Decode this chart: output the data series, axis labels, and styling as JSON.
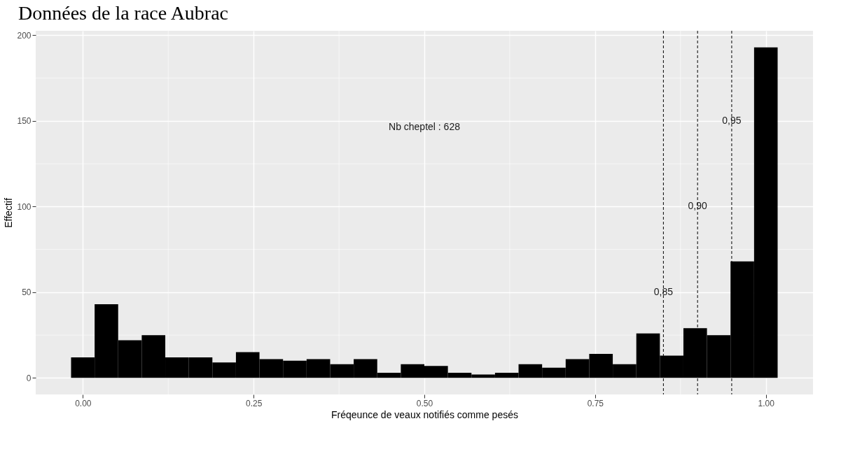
{
  "chart_data": {
    "type": "histogram",
    "title": "Données de la race Aubrac",
    "xlabel": "Fréqeunce de veaux notifiés comme pesés",
    "ylabel": "Effectif",
    "bins": [
      -0.01724,
      0.01724,
      0.05172,
      0.08621,
      0.12069,
      0.15517,
      0.18966,
      0.22414,
      0.25862,
      0.2931,
      0.32759,
      0.36207,
      0.39655,
      0.43103,
      0.46552,
      0.5,
      0.53448,
      0.56897,
      0.60345,
      0.63793,
      0.67241,
      0.7069,
      0.74138,
      0.77586,
      0.81034,
      0.84483,
      0.87931,
      0.91379,
      0.94828,
      0.98276,
      1.01724
    ],
    "values": [
      12,
      43,
      22,
      25,
      12,
      12,
      9,
      15,
      11,
      10,
      11,
      8,
      11,
      3,
      8,
      7,
      3,
      2,
      3,
      8,
      6,
      11,
      14,
      8,
      26,
      13,
      29,
      25,
      68,
      193
    ],
    "color": "#000000",
    "xlim": [
      -0.069,
      1.069
    ],
    "ylim": [
      -9.65,
      202.65
    ],
    "xticks": [
      {
        "value": 0,
        "label": "0.00"
      },
      {
        "value": 0.25,
        "label": "0.25"
      },
      {
        "value": 0.5,
        "label": "0.50"
      },
      {
        "value": 0.75,
        "label": "0.75"
      },
      {
        "value": 1,
        "label": "1.00"
      }
    ],
    "yticks": [
      0,
      50,
      100,
      150,
      200
    ],
    "grid": true,
    "ref_lines": [
      {
        "axis": "x",
        "value": 0.85,
        "line_style": "dashed",
        "color": "#000000"
      },
      {
        "axis": "x",
        "value": 0.9,
        "line_style": "dashed",
        "color": "#000000"
      },
      {
        "axis": "x",
        "value": 0.95,
        "line_style": "dashed",
        "color": "#000000"
      }
    ],
    "annotations": [
      "Nb cheptel : 628",
      {
        "text": "0,85",
        "x": 0.85,
        "y": 50
      },
      {
        "text": "0,90",
        "x": 0.9,
        "y": 100
      },
      {
        "text": "0,95",
        "x": 0.95,
        "y": 150
      }
    ]
  }
}
